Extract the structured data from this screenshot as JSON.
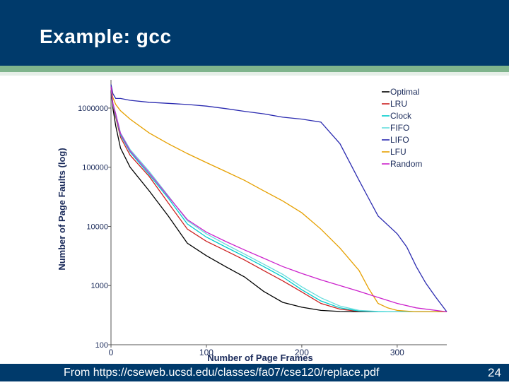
{
  "slide": {
    "title": "Example: gcc",
    "source": "From https://cseweb.ucsd.edu/classes/fa07/cse120/replace.pdf",
    "page_number": "24"
  },
  "colors": {
    "header_bg": "#003a6b",
    "accent_stripe": "#7fb48c"
  },
  "chart_data": {
    "type": "line",
    "xlabel": "Number of Page Frames",
    "ylabel": "Number of Page Faults (log)",
    "y_scale": "log",
    "xlim": [
      0,
      352
    ],
    "ylim": [
      100,
      3000000
    ],
    "x_ticks": [
      0,
      100,
      200,
      300
    ],
    "x_tick_labels": [
      "0",
      "100",
      "200",
      "300"
    ],
    "y_ticks": [
      100,
      1000,
      10000,
      100000,
      1000000
    ],
    "y_tick_labels": [
      "100",
      "1000",
      "10000",
      "100000",
      "1000000"
    ],
    "grid": false,
    "legend_position": "top-right",
    "series": [
      {
        "name": "Optimal",
        "color": "#000000",
        "x": [
          0,
          2,
          5,
          10,
          20,
          40,
          60,
          80,
          100,
          120,
          140,
          160,
          180,
          200,
          220,
          240,
          260,
          280,
          300,
          320,
          352
        ],
        "y": [
          2000000,
          1000000,
          500000,
          210000,
          100000,
          40000,
          15000,
          5200,
          3200,
          2100,
          1400,
          800,
          520,
          430,
          380,
          365,
          360,
          360,
          360,
          360,
          360
        ]
      },
      {
        "name": "LRU",
        "color": "#cc2222",
        "x": [
          0,
          2,
          5,
          10,
          20,
          40,
          60,
          80,
          100,
          120,
          140,
          160,
          180,
          200,
          220,
          240,
          260,
          280,
          300,
          320,
          352
        ],
        "y": [
          2200000,
          1100000,
          700000,
          320000,
          160000,
          70000,
          25000,
          9000,
          5600,
          3900,
          2700,
          1800,
          1200,
          780,
          500,
          400,
          365,
          360,
          360,
          360,
          360
        ]
      },
      {
        "name": "Clock",
        "color": "#00cccc",
        "x": [
          0,
          2,
          5,
          10,
          20,
          40,
          60,
          80,
          100,
          120,
          140,
          160,
          180,
          200,
          220,
          240,
          260,
          280,
          300,
          320,
          352
        ],
        "y": [
          2200000,
          1150000,
          750000,
          350000,
          180000,
          75000,
          30000,
          11000,
          6600,
          4500,
          3100,
          2100,
          1400,
          850,
          550,
          420,
          370,
          360,
          360,
          360,
          360
        ]
      },
      {
        "name": "FIFO",
        "color": "#66dddd",
        "x": [
          0,
          2,
          5,
          10,
          20,
          40,
          60,
          80,
          100,
          120,
          140,
          160,
          180,
          200,
          220,
          240,
          260,
          280,
          300,
          320,
          352
        ],
        "y": [
          2300000,
          1200000,
          800000,
          380000,
          200000,
          85000,
          33000,
          12500,
          7500,
          5000,
          3400,
          2300,
          1550,
          950,
          620,
          450,
          380,
          365,
          360,
          360,
          360
        ]
      },
      {
        "name": "LIFO",
        "color": "#2b2bb0",
        "x": [
          0,
          2,
          5,
          10,
          20,
          40,
          60,
          80,
          100,
          120,
          140,
          160,
          180,
          200,
          220,
          240,
          260,
          270,
          280,
          300,
          310,
          320,
          330,
          340,
          352
        ],
        "y": [
          2500000,
          1750000,
          1450000,
          1450000,
          1350000,
          1250000,
          1200000,
          1150000,
          1080000,
          980000,
          880000,
          800000,
          700000,
          650000,
          580000,
          250000,
          60000,
          30000,
          15000,
          7500,
          4500,
          2100,
          1100,
          650,
          360
        ]
      },
      {
        "name": "LFU",
        "color": "#e6a000",
        "x": [
          0,
          2,
          5,
          10,
          20,
          40,
          60,
          80,
          100,
          120,
          140,
          160,
          180,
          200,
          220,
          240,
          260,
          270,
          280,
          290,
          300,
          320,
          352
        ],
        "y": [
          2200000,
          1500000,
          1150000,
          900000,
          650000,
          380000,
          250000,
          170000,
          120000,
          85000,
          60000,
          40000,
          27000,
          17000,
          9000,
          4300,
          1800,
          900,
          500,
          420,
          380,
          360,
          360
        ]
      },
      {
        "name": "Random",
        "color": "#cc22cc",
        "x": [
          0,
          2,
          5,
          10,
          20,
          40,
          60,
          80,
          100,
          120,
          140,
          160,
          180,
          200,
          220,
          240,
          260,
          280,
          300,
          320,
          352
        ],
        "y": [
          2300000,
          1200000,
          800000,
          370000,
          190000,
          80000,
          32000,
          13000,
          8000,
          5600,
          4000,
          2900,
          2100,
          1600,
          1250,
          1000,
          800,
          630,
          500,
          420,
          360
        ]
      }
    ]
  }
}
